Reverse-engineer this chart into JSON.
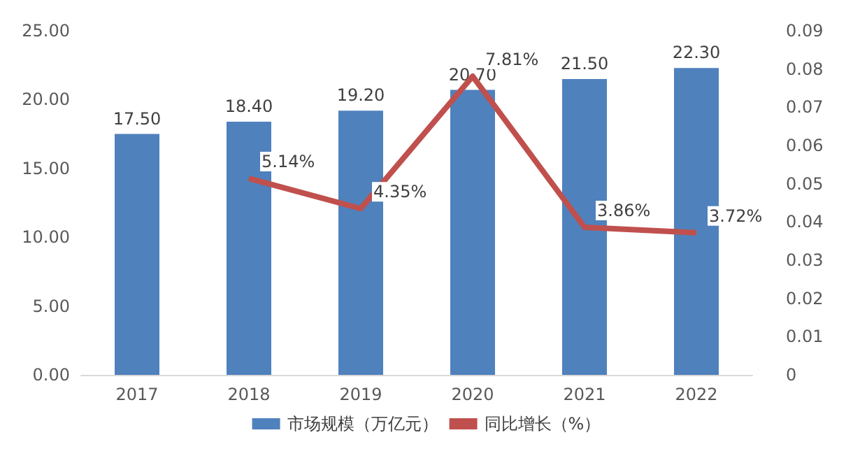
{
  "chart_data": {
    "type": "bar",
    "categories": [
      "2017",
      "2018",
      "2019",
      "2020",
      "2021",
      "2022"
    ],
    "series": [
      {
        "name": "市场规模（万亿元）",
        "color": "#4f81bd",
        "values": [
          17.5,
          18.4,
          19.2,
          20.7,
          21.5,
          22.3
        ],
        "value_labels": [
          "17.50",
          "18.40",
          "19.20",
          "20.70",
          "21.50",
          "22.30"
        ]
      },
      {
        "name": "同比增长（%）",
        "type": "line",
        "axis": "y2",
        "color": "#c0504d",
        "values": [
          null,
          0.0514,
          0.0435,
          0.0781,
          0.0386,
          0.0372
        ],
        "value_labels": [
          null,
          "5.14%",
          "4.35%",
          "7.81%",
          "3.86%",
          "3.72%"
        ]
      }
    ],
    "ylim": [
      0,
      25
    ],
    "yticks": [
      {
        "value": 0,
        "label": "0.00"
      },
      {
        "value": 5,
        "label": "5.00"
      },
      {
        "value": 10,
        "label": "10.00"
      },
      {
        "value": 15,
        "label": "15.00"
      },
      {
        "value": 20,
        "label": "20.00"
      },
      {
        "value": 25,
        "label": "25.00"
      }
    ],
    "y2lim": [
      0,
      0.09
    ],
    "y2ticks": [
      0,
      0.01,
      0.02,
      0.03,
      0.04,
      0.05,
      0.06,
      0.07,
      0.08,
      0.09
    ],
    "legend": "bottom",
    "marker": "none"
  }
}
